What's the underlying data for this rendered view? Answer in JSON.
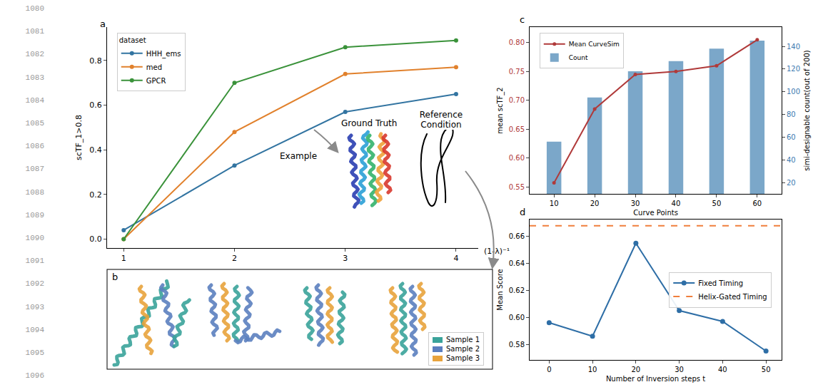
{
  "line_numbers": [
    1080,
    1081,
    1082,
    1083,
    1084,
    1085,
    1086,
    1087,
    1088,
    1089,
    1090,
    1091,
    1092,
    1093,
    1094,
    1095,
    1096
  ],
  "chart_data": [
    {
      "label": "a",
      "type": "line",
      "ylabel": "scTF_1>0.8",
      "xlabel": "(1-λ)⁻¹",
      "x": [
        1,
        2,
        3,
        4
      ],
      "xlim": [
        0.85,
        4.2
      ],
      "xticks": [
        1,
        2,
        3,
        4
      ],
      "ylim": [
        -0.04,
        0.95
      ],
      "yticks": [
        {
          "value": 0,
          "label": "0.0"
        },
        {
          "value": 0.2,
          "label": "0.2"
        },
        {
          "value": 0.4,
          "label": "0.4"
        },
        {
          "value": 0.6,
          "label": "0.6"
        },
        {
          "value": 0.8,
          "label": "0.8"
        }
      ],
      "grid": false,
      "legend": "upper left",
      "legend_title": "dataset",
      "marker": "circle",
      "series": [
        {
          "name": "HHH_ems",
          "color": "#3274a1",
          "values": [
            0.04,
            0.33,
            0.57,
            0.65
          ]
        },
        {
          "name": "med",
          "color": "#e1812c",
          "values": [
            0.0,
            0.48,
            0.74,
            0.77
          ]
        },
        {
          "name": "GPCR",
          "color": "#3a923a",
          "values": [
            0.0,
            0.7,
            0.86,
            0.89
          ]
        }
      ]
    },
    {
      "label": "c",
      "type": "bar",
      "xlabel": "Curve Points",
      "ylabel": "mean scTF_2",
      "y2label": "simi-designable count(out of 200)",
      "x": [
        10,
        20,
        30,
        40,
        50,
        60
      ],
      "xlim": [
        4,
        66
      ],
      "xticks": [
        10,
        20,
        30,
        40,
        50,
        60
      ],
      "ylim": [
        0.538,
        0.827
      ],
      "yticks": [
        0.55,
        {
          "value": 0.6,
          "label": "0.60"
        },
        0.65,
        {
          "value": 0.7,
          "label": "0.70"
        },
        0.75,
        {
          "value": 0.8,
          "label": "0.80"
        }
      ],
      "y2lim": [
        10,
        157
      ],
      "y2ticks": [
        20,
        40,
        60,
        80,
        100,
        120,
        140
      ],
      "grid": false,
      "legend": "upper left",
      "series": [
        {
          "name": "Mean CurveSim",
          "type": "line",
          "color": "#b03a3a",
          "marker": "circle",
          "values": [
            0.557,
            0.685,
            0.745,
            0.75,
            0.76,
            0.805
          ]
        },
        {
          "name": "Count",
          "type": "bar",
          "axis": "y2",
          "color": "#7ba7c9",
          "values": [
            56,
            95,
            118,
            127,
            138,
            145
          ]
        }
      ]
    },
    {
      "label": "d",
      "type": "line",
      "xlabel": "Number of Inversion steps t",
      "ylabel": "Mean Score",
      "x": [
        0,
        10,
        20,
        30,
        40,
        50
      ],
      "xlim": [
        -4.5,
        53.6
      ],
      "xticks": [
        0,
        10,
        20,
        30,
        40,
        50
      ],
      "ylim": [
        0.5684,
        0.6726
      ],
      "yticks": [
        0.58,
        {
          "value": 0.6,
          "label": "0.60"
        },
        0.62,
        0.64,
        0.66
      ],
      "grid": false,
      "legend": "center right",
      "series": [
        {
          "name": "Fixed Timing",
          "color": "#2e6ea6",
          "marker": "circle",
          "line_style": "solid",
          "values": [
            0.596,
            0.586,
            0.655,
            0.605,
            0.597,
            0.575
          ]
        },
        {
          "name": "Helix-Gated Timing",
          "color": "#f07f3c",
          "line_style": "dashed",
          "hline": 0.668
        }
      ]
    }
  ],
  "panel_a_inset": {
    "example": "Example",
    "ground_truth": "Ground Truth",
    "reference_condition": "Reference Condition"
  },
  "panel_b": {
    "label": "b",
    "legend": [
      {
        "name": "Sample 1",
        "color": "#3aa39a"
      },
      {
        "name": "Sample 2",
        "color": "#5b7fbf"
      },
      {
        "name": "Sample 3",
        "color": "#e8a33c"
      }
    ]
  }
}
